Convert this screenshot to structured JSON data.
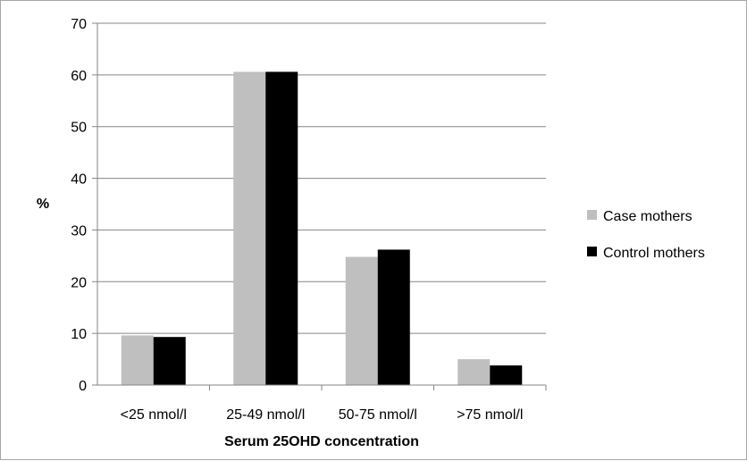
{
  "chart_data": {
    "type": "bar",
    "categories": [
      "<25 nmol/l",
      "25-49 nmol/l",
      "50-75 nmol/l",
      ">75 nmol/l"
    ],
    "series": [
      {
        "name": "Case mothers",
        "values": [
          9.6,
          60.6,
          24.8,
          5.0
        ],
        "color": "#bfbfbf"
      },
      {
        "name": "Control mothers",
        "values": [
          9.3,
          60.6,
          26.2,
          3.8
        ],
        "color": "#000000"
      }
    ],
    "title": "",
    "xlabel": "Serum 25OHD concentration",
    "ylabel": "%",
    "ylim": [
      0,
      70
    ],
    "yticks": [
      "0",
      "10",
      "20",
      "30",
      "40",
      "50",
      "60",
      "70"
    ],
    "grid": true,
    "legend_position": "right"
  }
}
